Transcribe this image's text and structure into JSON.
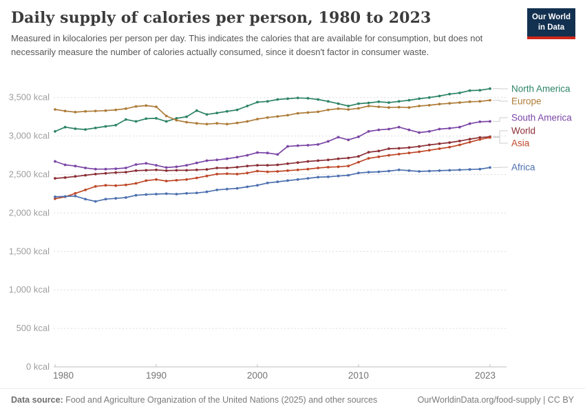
{
  "header": {
    "title": "Daily supply of calories per person, 1980 to 2023",
    "subtitle": "Measured in kilocalories per person per day. This indicates the calories that are available for consumption, but does not necessarily measure the number of calories actually consumed, since it doesn't factor in consumer waste.",
    "logo": {
      "line1": "Our World",
      "line2": "in Data",
      "bg_color": "#12304F",
      "accent_color": "#CE261A"
    }
  },
  "footer": {
    "datasource_label": "Data source:",
    "datasource_text": " Food and Agriculture Organization of the United Nations (2025) and other sources",
    "link_text": "OurWorldinData.org/food-supply | CC BY"
  },
  "chart_data": {
    "type": "line",
    "title": "Daily supply of calories per person, 1980 to 2023",
    "unit": "kcal",
    "xlabel": "",
    "ylabel": "",
    "ylim": [
      0,
      3500
    ],
    "grid": true,
    "legend_position": "right",
    "x_ticks": [
      1980,
      1990,
      2000,
      2010,
      2023
    ],
    "y_ticks": [
      {
        "value": 0,
        "label": "0 kcal"
      },
      {
        "value": 500,
        "label": "500 kcal"
      },
      {
        "value": 1000,
        "label": "1,000 kcal"
      },
      {
        "value": 1500,
        "label": "1,500 kcal"
      },
      {
        "value": 2000,
        "label": "2,000 kcal"
      },
      {
        "value": 2500,
        "label": "2,500 kcal"
      },
      {
        "value": 3000,
        "label": "3,000 kcal"
      },
      {
        "value": 3500,
        "label": "3,500 kcal"
      }
    ],
    "x": [
      1980,
      1981,
      1982,
      1983,
      1984,
      1985,
      1986,
      1987,
      1988,
      1989,
      1990,
      1991,
      1992,
      1993,
      1994,
      1995,
      1996,
      1997,
      1998,
      1999,
      2000,
      2001,
      2002,
      2003,
      2004,
      2005,
      2006,
      2007,
      2008,
      2009,
      2010,
      2011,
      2012,
      2013,
      2014,
      2015,
      2016,
      2017,
      2018,
      2019,
      2020,
      2021,
      2022,
      2023
    ],
    "series": [
      {
        "name": "North America",
        "color": "#2C8465",
        "label_y": 17,
        "values": [
          3060,
          3115,
          3095,
          3085,
          3105,
          3125,
          3140,
          3215,
          3190,
          3225,
          3230,
          3190,
          3230,
          3250,
          3330,
          3280,
          3300,
          3320,
          3340,
          3390,
          3440,
          3450,
          3475,
          3485,
          3495,
          3490,
          3475,
          3450,
          3420,
          3390,
          3420,
          3430,
          3445,
          3435,
          3450,
          3465,
          3485,
          3500,
          3520,
          3545,
          3560,
          3590,
          3595,
          3615
        ]
      },
      {
        "name": "Europe",
        "color": "#AE7C39",
        "label_y": 35,
        "values": [
          3345,
          3325,
          3310,
          3320,
          3325,
          3330,
          3340,
          3355,
          3385,
          3395,
          3380,
          3260,
          3205,
          3180,
          3165,
          3155,
          3165,
          3155,
          3170,
          3190,
          3220,
          3240,
          3255,
          3270,
          3295,
          3305,
          3315,
          3340,
          3355,
          3345,
          3360,
          3390,
          3380,
          3370,
          3375,
          3370,
          3390,
          3400,
          3415,
          3425,
          3435,
          3445,
          3450,
          3465
        ]
      },
      {
        "name": "South America",
        "color": "#7A45A5",
        "label_y": 59,
        "values": [
          2670,
          2625,
          2610,
          2585,
          2570,
          2570,
          2575,
          2585,
          2630,
          2645,
          2620,
          2590,
          2600,
          2620,
          2650,
          2680,
          2690,
          2705,
          2725,
          2750,
          2785,
          2780,
          2760,
          2865,
          2875,
          2880,
          2890,
          2930,
          2985,
          2950,
          2990,
          3060,
          3080,
          3090,
          3115,
          3080,
          3045,
          3060,
          3090,
          3100,
          3115,
          3160,
          3185,
          3190
        ]
      },
      {
        "name": "World",
        "color": "#8B2E35",
        "label_y": 78,
        "values": [
          2450,
          2460,
          2475,
          2490,
          2505,
          2515,
          2525,
          2530,
          2550,
          2555,
          2560,
          2550,
          2555,
          2555,
          2560,
          2565,
          2585,
          2585,
          2595,
          2610,
          2620,
          2620,
          2625,
          2640,
          2655,
          2670,
          2680,
          2690,
          2705,
          2715,
          2735,
          2790,
          2805,
          2835,
          2840,
          2850,
          2865,
          2885,
          2900,
          2915,
          2935,
          2960,
          2980,
          2990
        ]
      },
      {
        "name": "Asia",
        "color": "#BE4727",
        "label_y": 96,
        "values": [
          2185,
          2210,
          2255,
          2300,
          2345,
          2360,
          2355,
          2365,
          2385,
          2420,
          2435,
          2415,
          2425,
          2435,
          2455,
          2480,
          2505,
          2510,
          2505,
          2520,
          2545,
          2535,
          2540,
          2550,
          2560,
          2570,
          2585,
          2595,
          2600,
          2610,
          2660,
          2710,
          2730,
          2750,
          2765,
          2780,
          2795,
          2815,
          2835,
          2855,
          2885,
          2920,
          2955,
          2980
        ]
      },
      {
        "name": "Africa",
        "color": "#4C70AF",
        "label_y": 131,
        "values": [
          2210,
          2215,
          2220,
          2180,
          2150,
          2180,
          2190,
          2200,
          2230,
          2240,
          2245,
          2250,
          2245,
          2255,
          2260,
          2275,
          2300,
          2310,
          2320,
          2340,
          2360,
          2390,
          2405,
          2420,
          2435,
          2450,
          2465,
          2470,
          2480,
          2490,
          2520,
          2530,
          2535,
          2545,
          2560,
          2550,
          2540,
          2545,
          2550,
          2555,
          2560,
          2565,
          2570,
          2590
        ]
      }
    ]
  }
}
